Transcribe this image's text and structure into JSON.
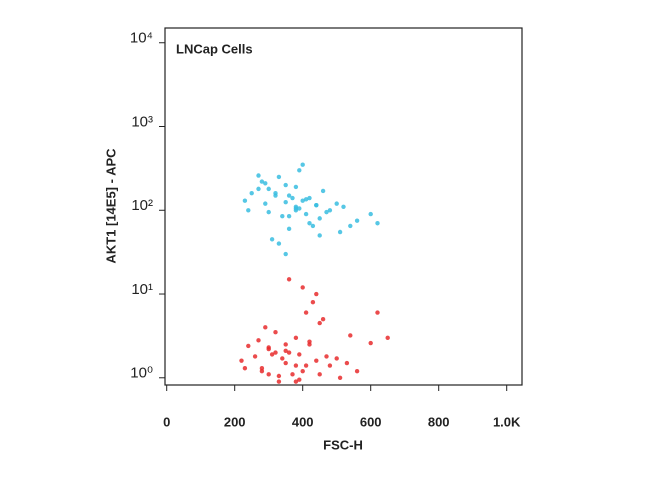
{
  "chart_data": {
    "type": "scatter",
    "annotation": "LNCap Cells",
    "xlabel": "FSC-H",
    "ylabel": "AKT1 [14E5] - APC",
    "xlim": [
      -5,
      1045
    ],
    "ylim": [
      0.82,
      15000
    ],
    "log_y": true,
    "xticks": [
      0,
      200,
      400,
      600,
      800,
      {
        "value": 1000,
        "label": "1.0K"
      }
    ],
    "yticks": [
      {
        "value": 1,
        "label": "10⁰"
      },
      {
        "value": 10,
        "label": "10¹"
      },
      {
        "value": 100,
        "label": "10²"
      },
      {
        "value": 1000,
        "label": "10³"
      },
      {
        "value": 10000,
        "label": "10⁴"
      }
    ],
    "series": [
      {
        "color": "#38bde0",
        "x": [
          380,
          320,
          410,
          350,
          290,
          450,
          360,
          400,
          270,
          480,
          330,
          420,
          300,
          370,
          510,
          250,
          440,
          390,
          340,
          560,
          230,
          460,
          310,
          380,
          600,
          280,
          430,
          350,
          520,
          400,
          360,
          330,
          470,
          290,
          410,
          620,
          240,
          380,
          450,
          320,
          500,
          360,
          270,
          420,
          390,
          540,
          300,
          350,
          440,
          380
        ],
        "values": [
          110,
          150,
          90,
          200,
          120,
          80,
          60,
          130,
          180,
          100,
          250,
          70,
          95,
          140,
          55,
          160,
          115,
          300,
          85,
          75,
          130,
          170,
          45,
          105,
          90,
          220,
          65,
          125,
          110,
          350,
          150,
          40,
          95,
          210,
          135,
          70,
          100,
          190,
          50,
          160,
          120,
          85,
          260,
          140,
          105,
          65,
          180,
          30,
          115,
          100
        ]
      },
      {
        "color": "#e82b2d",
        "x": [
          350,
          300,
          400,
          380,
          260,
          450,
          330,
          420,
          290,
          480,
          360,
          230,
          410,
          340,
          510,
          270,
          440,
          390,
          320,
          560,
          240,
          460,
          310,
          370,
          600,
          280,
          430,
          350,
          530,
          400,
          650,
          330,
          470,
          300,
          410,
          220,
          380,
          450,
          320,
          500,
          360,
          280,
          420,
          390,
          540,
          300,
          350,
          440,
          380,
          620
        ],
        "values": [
          1.5,
          2.2,
          1.2,
          3,
          1.8,
          1.1,
          0.9,
          2.5,
          4,
          1.4,
          2,
          1.3,
          6,
          1.7,
          1,
          2.8,
          1.6,
          0.95,
          3.5,
          1.2,
          2.4,
          5,
          1.9,
          1.1,
          2.6,
          1.3,
          8,
          2.1,
          1.5,
          12,
          3,
          1.05,
          1.8,
          2.3,
          1.4,
          1.6,
          0.9,
          4.5,
          2,
          1.7,
          15,
          1.2,
          2.7,
          1.9,
          3.2,
          1.1,
          2.5,
          10,
          1.4,
          6
        ]
      }
    ]
  }
}
